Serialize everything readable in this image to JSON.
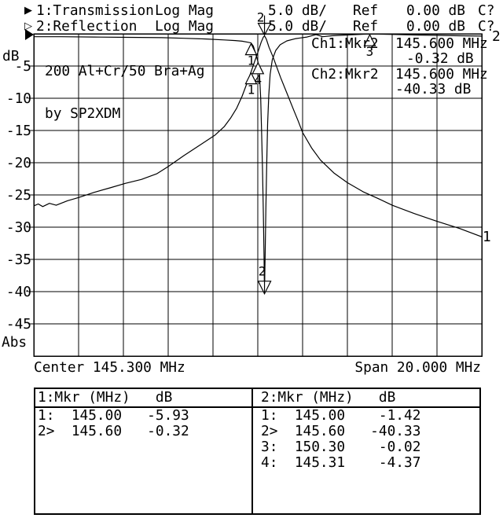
{
  "header": {
    "rows": [
      {
        "pointer": "▶",
        "name": "1:Transmission",
        "format": "Log Mag",
        "scale": "5.0 dB/",
        "ref": "Ref",
        "ref_value": "0.00 dB",
        "cal": "C?"
      },
      {
        "pointer": "▷",
        "name": "2:Reflection",
        "format": "Log Mag",
        "scale": "5.0 dB/",
        "ref": "Ref",
        "ref_value": "0.00 dB",
        "cal": "C?"
      }
    ]
  },
  "plot": {
    "annotation_line1": "200 Al+Cr/50 Bra+Ag",
    "annotation_line2": "by SP2XDM",
    "readouts": [
      {
        "channel": "Ch1:Mkr2",
        "freq": "145.600 MHz",
        "value": "-0.32 dB"
      },
      {
        "channel": "Ch2:Mkr2",
        "freq": "145.600 MHz",
        "value": "-40.33 dB"
      }
    ],
    "y_axis": {
      "unit": "dB",
      "bottom_label": "Abs",
      "tick_labels": [
        "-5",
        "-10",
        "-15",
        "-20",
        "-25",
        "-30",
        "-35",
        "-40",
        "-45"
      ]
    },
    "x_axis": {
      "center_label": "Center 145.300 MHz",
      "span_label": "Span 20.000 MHz"
    },
    "trace_end_labels": {
      "trace1": "1",
      "trace2": "2"
    }
  },
  "chart_data": {
    "type": "line",
    "title": "200 Al+Cr/50 Bra+Ag by SP2XDM",
    "xlabel": "Frequency (MHz), Center 145.300 MHz, Span 20.000 MHz",
    "ylabel": "dB (5.0 dB/div, Ref 0.00 dB)",
    "x_range_mhz": [
      135.3,
      155.3
    ],
    "y_range_db": [
      -50,
      0
    ],
    "y_step_db": 5,
    "x_divisions": 10,
    "grid": true,
    "series": [
      {
        "name": "1: Transmission (Log Mag)",
        "points": [
          [
            135.3,
            -26.7
          ],
          [
            135.5,
            -26.4
          ],
          [
            135.7,
            -26.8
          ],
          [
            136.0,
            -26.3
          ],
          [
            136.3,
            -26.6
          ],
          [
            136.8,
            -25.9
          ],
          [
            137.3,
            -25.4
          ],
          [
            138.0,
            -24.6
          ],
          [
            138.7,
            -23.9
          ],
          [
            139.4,
            -23.2
          ],
          [
            140.1,
            -22.6
          ],
          [
            140.8,
            -21.7
          ],
          [
            141.3,
            -20.6
          ],
          [
            142.0,
            -18.9
          ],
          [
            142.7,
            -17.3
          ],
          [
            143.4,
            -15.7
          ],
          [
            143.8,
            -14.4
          ],
          [
            144.1,
            -13.0
          ],
          [
            144.35,
            -11.6
          ],
          [
            144.6,
            -9.7
          ],
          [
            144.8,
            -7.8
          ],
          [
            145.0,
            -5.93
          ],
          [
            145.15,
            -4.4
          ],
          [
            145.3,
            -2.9
          ],
          [
            145.45,
            -1.3
          ],
          [
            145.55,
            -0.5
          ],
          [
            145.6,
            -0.32
          ],
          [
            145.68,
            -0.8
          ],
          [
            145.8,
            -2.1
          ],
          [
            145.97,
            -3.5
          ],
          [
            146.15,
            -5.2
          ],
          [
            146.32,
            -6.8
          ],
          [
            146.6,
            -9.2
          ],
          [
            146.9,
            -11.8
          ],
          [
            147.1,
            -13.5
          ],
          [
            147.3,
            -15.3
          ],
          [
            147.7,
            -17.7
          ],
          [
            148.1,
            -19.6
          ],
          [
            148.7,
            -21.6
          ],
          [
            149.3,
            -23.1
          ],
          [
            150.0,
            -24.5
          ],
          [
            150.7,
            -25.6
          ],
          [
            151.3,
            -26.6
          ],
          [
            152.3,
            -27.9
          ],
          [
            153.3,
            -29.1
          ],
          [
            154.3,
            -30.2
          ],
          [
            155.3,
            -31.5
          ]
        ]
      },
      {
        "name": "2: Reflection (Log Mag)",
        "points": [
          [
            135.3,
            -0.45
          ],
          [
            136.5,
            -0.45
          ],
          [
            138.0,
            -0.5
          ],
          [
            139.5,
            -0.55
          ],
          [
            141.0,
            -0.6
          ],
          [
            142.0,
            -0.7
          ],
          [
            143.0,
            -0.8
          ],
          [
            143.8,
            -0.95
          ],
          [
            144.3,
            -1.05
          ],
          [
            144.6,
            -1.15
          ],
          [
            144.85,
            -1.3
          ],
          [
            145.0,
            -1.42
          ],
          [
            145.1,
            -1.9
          ],
          [
            145.2,
            -3.0
          ],
          [
            145.31,
            -4.37
          ],
          [
            145.38,
            -6.5
          ],
          [
            145.43,
            -10
          ],
          [
            145.47,
            -15
          ],
          [
            145.51,
            -21
          ],
          [
            145.55,
            -28
          ],
          [
            145.58,
            -35
          ],
          [
            145.6,
            -40.33
          ],
          [
            145.63,
            -34
          ],
          [
            145.66,
            -27
          ],
          [
            145.7,
            -20
          ],
          [
            145.74,
            -14
          ],
          [
            145.79,
            -9.5
          ],
          [
            145.85,
            -6.3
          ],
          [
            145.95,
            -4.0
          ],
          [
            146.1,
            -2.6
          ],
          [
            146.3,
            -1.7
          ],
          [
            146.6,
            -1.1
          ],
          [
            147.0,
            -0.75
          ],
          [
            147.5,
            -0.5
          ],
          [
            147.9,
            -0.12
          ],
          [
            148.2,
            -0.45
          ],
          [
            148.6,
            -0.3
          ],
          [
            149.3,
            -0.18
          ],
          [
            150.3,
            -0.02
          ],
          [
            151.3,
            -0.1
          ],
          [
            152.3,
            -0.18
          ],
          [
            153.3,
            -0.25
          ],
          [
            154.3,
            -0.3
          ],
          [
            155.3,
            -0.35
          ]
        ]
      }
    ],
    "markers": [
      {
        "trace": 1,
        "mhz": 145.6,
        "db": -0.32,
        "label": "2",
        "style": "down"
      },
      {
        "trace": 1,
        "mhz": 145.0,
        "db": -5.93,
        "label": "1",
        "style": "up"
      },
      {
        "trace": 2,
        "mhz": 145.0,
        "db": -1.42,
        "label": "1",
        "style": "up"
      },
      {
        "trace": 2,
        "mhz": 145.31,
        "db": -4.37,
        "label": "4",
        "style": "up"
      },
      {
        "trace": 2,
        "mhz": 145.6,
        "db": -40.33,
        "label": "2",
        "style": "down-arrow"
      },
      {
        "trace": 2,
        "mhz": 150.3,
        "db": -0.02,
        "label": "3",
        "style": "up"
      }
    ]
  },
  "marker_table": {
    "left": {
      "header": "1:Mkr (MHz)   dB",
      "rows": [
        {
          "label": "1:",
          "freq": "145.00",
          "db": "-5.93"
        },
        {
          "label": "2>",
          "freq": "145.60",
          "db": "-0.32"
        }
      ]
    },
    "right": {
      "header": "2:Mkr (MHz)   dB",
      "rows": [
        {
          "label": "1:",
          "freq": "145.00",
          "db": "-1.42"
        },
        {
          "label": "2>",
          "freq": "145.60",
          "db": "-40.33"
        },
        {
          "label": "3:",
          "freq": "150.30",
          "db": "-0.02"
        },
        {
          "label": "4:",
          "freq": "145.31",
          "db": "-4.37"
        }
      ]
    }
  }
}
